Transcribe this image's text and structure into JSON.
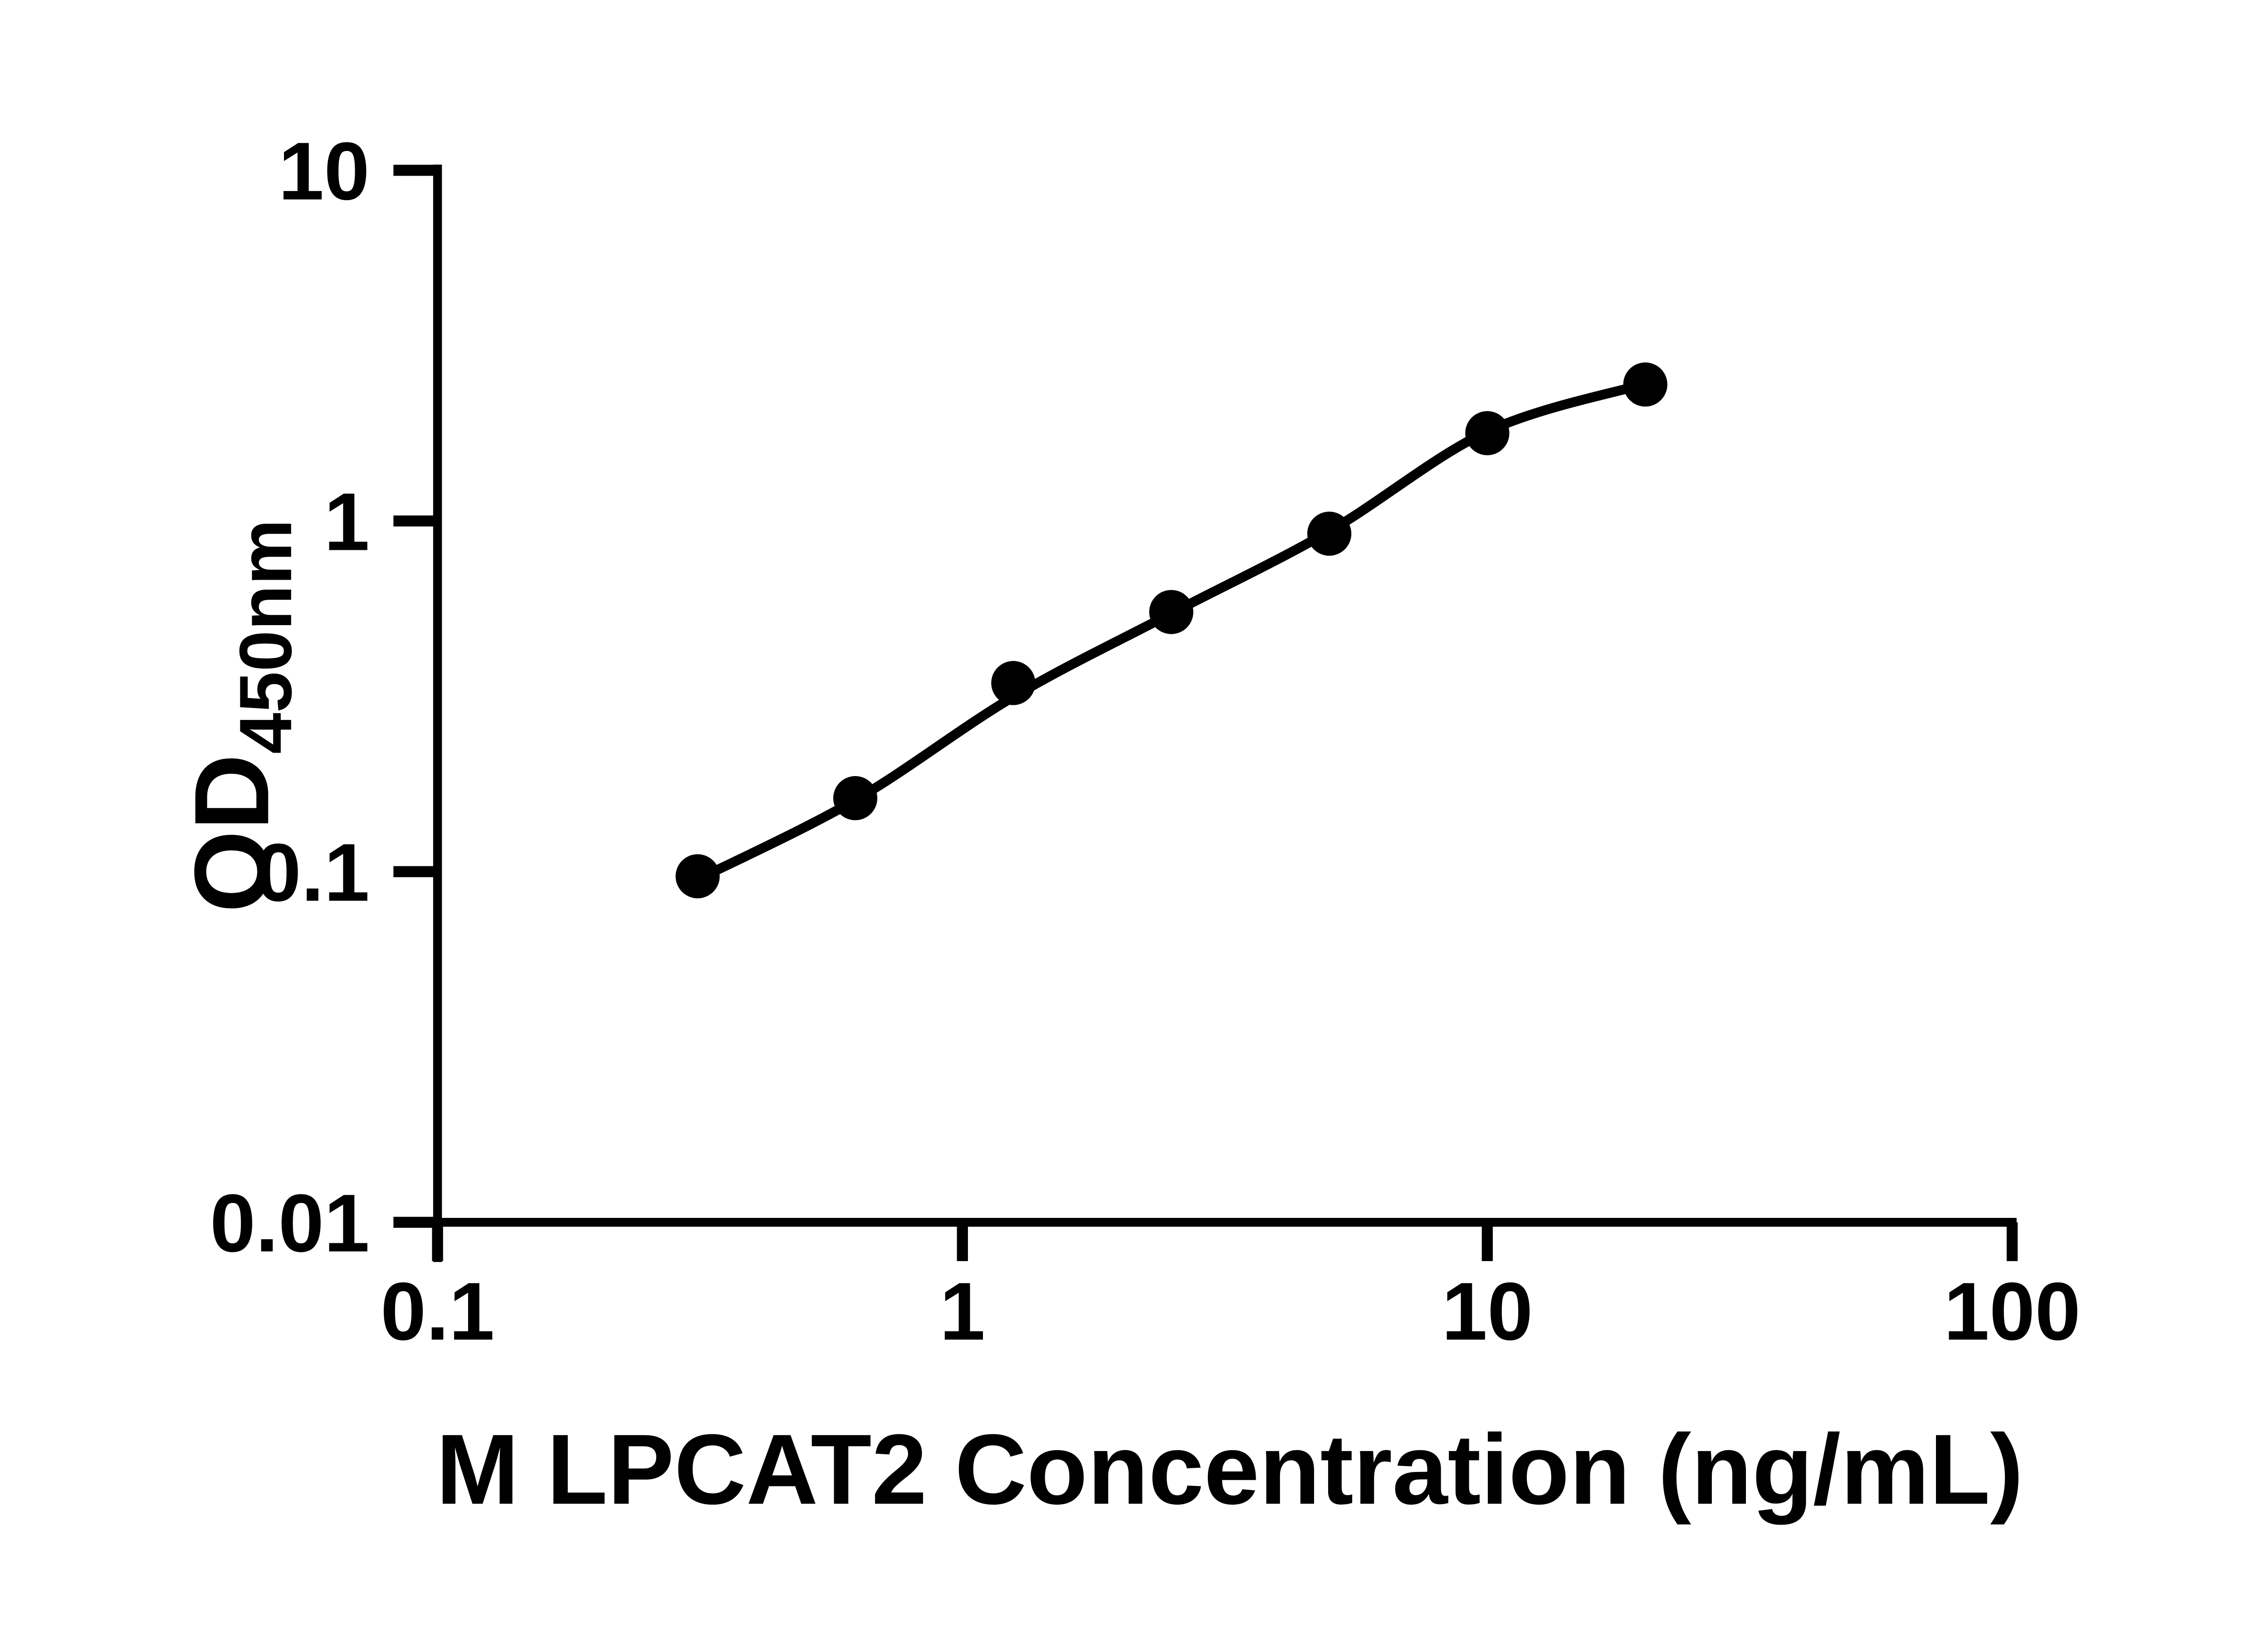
{
  "figure": {
    "background_color": "#ffffff",
    "ink_color": "#000000"
  },
  "chart_data": {
    "type": "scatter",
    "title": "",
    "xlabel": "M LPCAT2 Concentration (ng/mL)",
    "ylabel_main": "OD",
    "ylabel_subscript": "450nm",
    "x_scale": "log",
    "y_scale": "log",
    "xlim": [
      0.1,
      100
    ],
    "ylim": [
      0.01,
      10
    ],
    "grid": false,
    "legend_position": "none",
    "x_ticks": {
      "values": [
        0.1,
        1,
        10,
        100
      ],
      "labels": [
        "0.1",
        "1",
        "10",
        "100"
      ]
    },
    "y_ticks": {
      "values": [
        0.01,
        0.1,
        1,
        10
      ],
      "labels": [
        "0.01",
        "0.1",
        "1",
        "10"
      ]
    },
    "series": [
      {
        "marker": "filled-circle",
        "color": "#000000",
        "points": [
          {
            "x": 0.313,
            "y": 0.097
          },
          {
            "x": 0.625,
            "y": 0.162
          },
          {
            "x": 1.25,
            "y": 0.345
          },
          {
            "x": 2.5,
            "y": 0.55
          },
          {
            "x": 5,
            "y": 0.92
          },
          {
            "x": 10,
            "y": 1.78
          },
          {
            "x": 20,
            "y": 2.45
          }
        ]
      }
    ],
    "fit_curve": {
      "color": "#000000",
      "style": "solid",
      "anchor_points": [
        {
          "x": 0.313,
          "y": 0.095
        },
        {
          "x": 0.625,
          "y": 0.16
        },
        {
          "x": 1.25,
          "y": 0.315
        },
        {
          "x": 2.5,
          "y": 0.545
        },
        {
          "x": 5,
          "y": 0.935
        },
        {
          "x": 10,
          "y": 1.8
        },
        {
          "x": 20,
          "y": 2.46
        }
      ]
    }
  }
}
